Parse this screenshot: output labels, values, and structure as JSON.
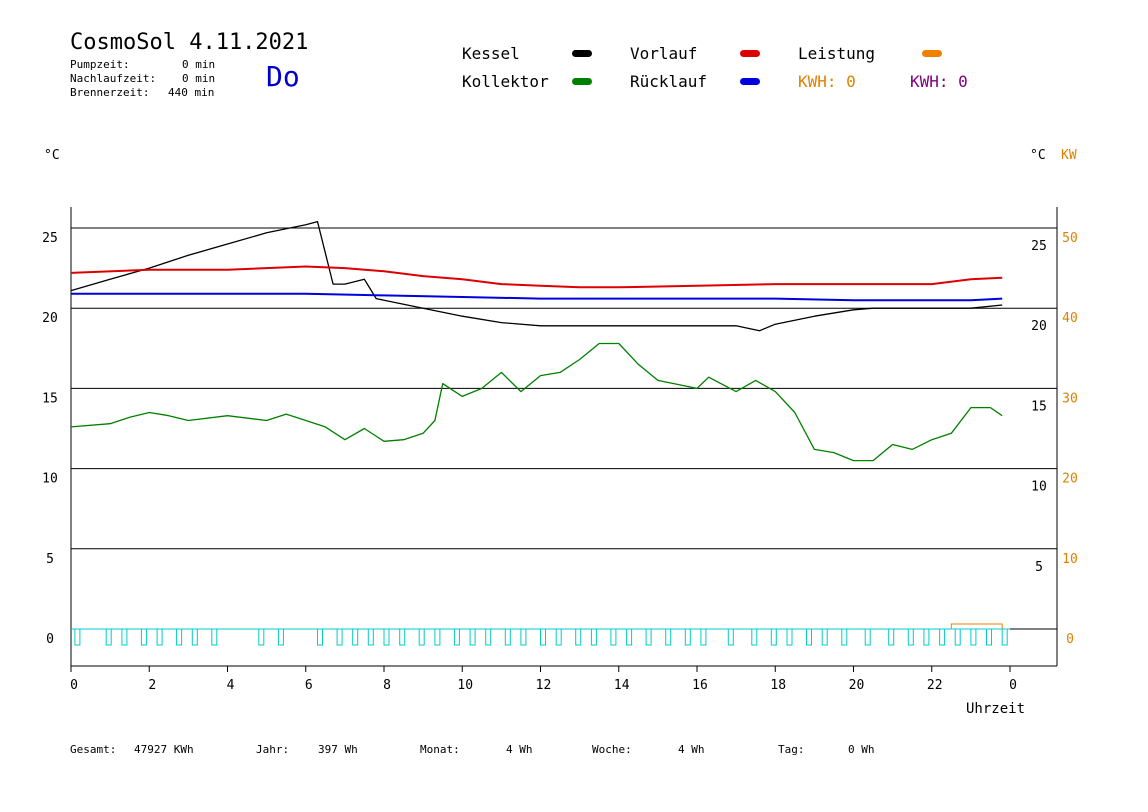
{
  "header": {
    "title": "CosmoSol 4.11.2021",
    "day": "Do",
    "stats": [
      {
        "label": "Pumpzeit:",
        "value": "0 min"
      },
      {
        "label": "Nachlaufzeit:",
        "value": "0 min"
      },
      {
        "label": "Brennerzeit:",
        "value": "440 min"
      }
    ]
  },
  "legend": {
    "kessel": {
      "label": "Kessel",
      "color": "#000000"
    },
    "vorlauf": {
      "label": "Vorlauf",
      "color": "#dd0000"
    },
    "leistung": {
      "label": "Leistung",
      "color": "#f08000"
    },
    "kollektor": {
      "label": "Kollektor",
      "color": "#008000"
    },
    "ruecklauf": {
      "label": "Rücklauf",
      "color": "#0000dd"
    },
    "kwh1": {
      "label": "KWH: 0",
      "color": "#e08000"
    },
    "kwh2": {
      "label": "KWH: 0",
      "color": "#800080"
    }
  },
  "axes": {
    "left_unit": "°C",
    "right_unit_c": "°C",
    "right_unit_kw": "KW",
    "x_label": "Uhrzeit"
  },
  "footer": [
    {
      "label": "Gesamt:",
      "value": "47927 KWh"
    },
    {
      "label": "Jahr:",
      "value": "397 Wh"
    },
    {
      "label": "Monat:",
      "value": "4 Wh"
    },
    {
      "label": "Woche:",
      "value": "4 Wh"
    },
    {
      "label": "Tag:",
      "value": "0 Wh"
    }
  ],
  "chart_data": {
    "type": "line",
    "title": "CosmoSol 4.11.2021",
    "xlabel": "Uhrzeit",
    "ylabel": "°C",
    "xlim": [
      0,
      24
    ],
    "ylim": [
      0,
      25
    ],
    "x_ticks": [
      "0",
      "2",
      "4",
      "6",
      "8",
      "10",
      "12",
      "14",
      "16",
      "18",
      "20",
      "22",
      "0"
    ],
    "y_ticks_left": [
      "0",
      "5",
      "10",
      "15",
      "20",
      "25"
    ],
    "y_ticks_right_c": [
      "5",
      "10",
      "15",
      "20",
      "25"
    ],
    "y_ticks_right_kw": [
      "0",
      "10",
      "20",
      "30",
      "40",
      "50"
    ],
    "grid": true,
    "series": [
      {
        "name": "Kessel",
        "color": "#000000",
        "x": [
          0,
          1,
          2,
          3,
          4,
          5,
          6,
          6.3,
          6.7,
          7,
          7.5,
          7.8,
          8,
          9,
          10,
          11,
          12,
          13,
          14,
          15,
          16,
          17,
          17.6,
          18,
          19,
          20,
          20.5,
          21,
          22,
          23,
          23.8
        ],
        "y": [
          21.1,
          21.8,
          22.5,
          23.3,
          24.0,
          24.7,
          25.2,
          25.4,
          21.5,
          21.5,
          21.8,
          20.6,
          20.5,
          20.0,
          19.5,
          19.1,
          18.9,
          18.9,
          18.9,
          18.9,
          18.9,
          18.9,
          18.6,
          19.0,
          19.5,
          19.9,
          20.0,
          20.0,
          20.0,
          20.0,
          20.2
        ]
      },
      {
        "name": "Vorlauf",
        "color": "#dd0000",
        "x": [
          0,
          2,
          4,
          6,
          7,
          8,
          9,
          10,
          11,
          12,
          13,
          14,
          16,
          18,
          20,
          22,
          23,
          23.8
        ],
        "y": [
          22.2,
          22.4,
          22.4,
          22.6,
          22.5,
          22.3,
          22.0,
          21.8,
          21.5,
          21.4,
          21.3,
          21.3,
          21.4,
          21.5,
          21.5,
          21.5,
          21.8,
          21.9
        ]
      },
      {
        "name": "Rücklauf",
        "color": "#0000dd",
        "x": [
          0,
          2,
          4,
          6,
          8,
          10,
          12,
          14,
          16,
          18,
          20,
          22,
          23,
          23.8
        ],
        "y": [
          20.9,
          20.9,
          20.9,
          20.9,
          20.8,
          20.7,
          20.6,
          20.6,
          20.6,
          20.6,
          20.5,
          20.5,
          20.5,
          20.6
        ]
      },
      {
        "name": "Kollektor",
        "color": "#008000",
        "x": [
          0,
          1,
          1.5,
          2,
          2.5,
          3,
          4,
          5,
          5.5,
          6,
          6.5,
          7,
          7.5,
          8,
          8.5,
          9,
          9.3,
          9.5,
          10,
          10.5,
          11,
          11.5,
          12,
          12.5,
          13,
          13.5,
          14,
          14.5,
          15,
          16,
          16.3,
          17,
          17.5,
          18,
          18.5,
          19,
          19.5,
          20,
          20.5,
          21,
          21.5,
          22,
          22.5,
          23,
          23.5,
          23.8
        ],
        "y": [
          12.6,
          12.8,
          13.2,
          13.5,
          13.3,
          13.0,
          13.3,
          13.0,
          13.4,
          13.0,
          12.6,
          11.8,
          12.5,
          11.7,
          11.8,
          12.2,
          13.0,
          15.3,
          14.5,
          15.0,
          16.0,
          14.8,
          15.8,
          16.0,
          16.8,
          17.8,
          17.8,
          16.5,
          15.5,
          15.0,
          15.7,
          14.8,
          15.5,
          14.8,
          13.5,
          11.2,
          11.0,
          10.5,
          10.5,
          11.5,
          11.2,
          11.8,
          12.2,
          13.8,
          13.8,
          13.3
        ]
      }
    ]
  }
}
